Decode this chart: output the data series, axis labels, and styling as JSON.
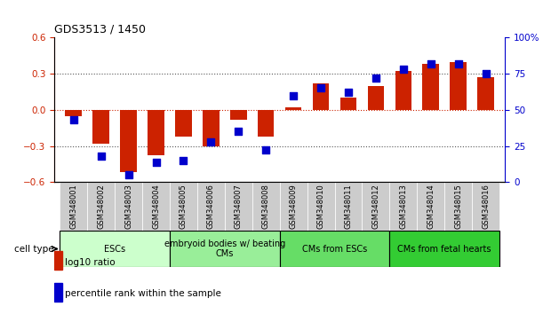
{
  "title": "GDS3513 / 1450",
  "samples": [
    "GSM348001",
    "GSM348002",
    "GSM348003",
    "GSM348004",
    "GSM348005",
    "GSM348006",
    "GSM348007",
    "GSM348008",
    "GSM348009",
    "GSM348010",
    "GSM348011",
    "GSM348012",
    "GSM348013",
    "GSM348014",
    "GSM348015",
    "GSM348016"
  ],
  "log10_ratio": [
    -0.05,
    -0.28,
    -0.52,
    -0.38,
    -0.22,
    -0.3,
    -0.08,
    -0.22,
    0.02,
    0.22,
    0.1,
    0.2,
    0.32,
    0.38,
    0.4,
    0.27
  ],
  "percentile_rank": [
    43,
    18,
    5,
    14,
    15,
    28,
    35,
    22,
    60,
    65,
    62,
    72,
    78,
    82,
    82,
    75
  ],
  "cell_types": [
    {
      "label": "ESCs",
      "start": 0,
      "end": 4,
      "color": "#ccffcc"
    },
    {
      "label": "embryoid bodies w/ beating\nCMs",
      "start": 4,
      "end": 8,
      "color": "#99ee99"
    },
    {
      "label": "CMs from ESCs",
      "start": 8,
      "end": 12,
      "color": "#66dd66"
    },
    {
      "label": "CMs from fetal hearts",
      "start": 12,
      "end": 16,
      "color": "#33cc33"
    }
  ],
  "bar_color": "#cc2200",
  "dot_color": "#0000cc",
  "ylim_left": [
    -0.6,
    0.6
  ],
  "ylim_right": [
    0,
    100
  ],
  "yticks_left": [
    -0.6,
    -0.3,
    0.0,
    0.3,
    0.6
  ],
  "yticks_right": [
    0,
    25,
    50,
    75,
    100
  ],
  "background_color": "#ffffff"
}
